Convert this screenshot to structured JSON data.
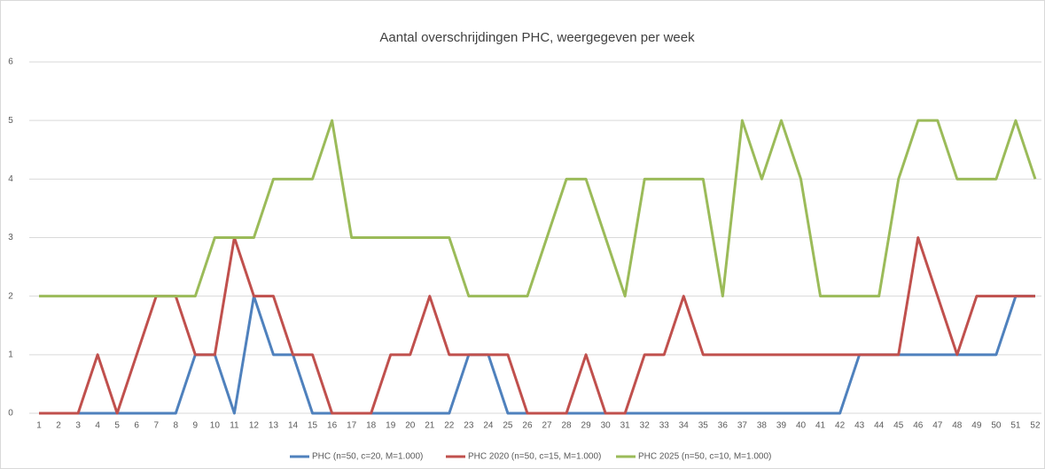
{
  "chart_data": {
    "type": "line",
    "title": "Aantal overschrijdingen PHC, weergegeven per week",
    "categories": [
      1,
      2,
      3,
      4,
      5,
      6,
      7,
      8,
      9,
      10,
      11,
      12,
      13,
      14,
      15,
      16,
      17,
      18,
      19,
      20,
      21,
      22,
      23,
      24,
      25,
      26,
      27,
      28,
      29,
      30,
      31,
      32,
      33,
      34,
      35,
      36,
      37,
      38,
      39,
      40,
      41,
      42,
      43,
      44,
      45,
      46,
      47,
      48,
      49,
      50,
      51,
      52
    ],
    "series": [
      {
        "name": "PHC (n=50, c=20, M=1.000)",
        "color": "#4f81bd",
        "values": [
          0,
          0,
          0,
          0,
          0,
          0,
          0,
          0,
          1,
          1,
          0,
          2,
          1,
          1,
          0,
          0,
          0,
          0,
          0,
          0,
          0,
          0,
          1,
          1,
          0,
          0,
          0,
          0,
          0,
          0,
          0,
          0,
          0,
          0,
          0,
          0,
          0,
          0,
          0,
          0,
          0,
          0,
          1,
          1,
          1,
          1,
          1,
          1,
          1,
          1,
          2,
          2
        ]
      },
      {
        "name": "PHC 2020 (n=50, c=15, M=1.000)",
        "color": "#c0504d",
        "values": [
          0,
          0,
          0,
          1,
          0,
          1,
          2,
          2,
          1,
          1,
          3,
          2,
          2,
          1,
          1,
          0,
          0,
          0,
          1,
          1,
          2,
          1,
          1,
          1,
          1,
          0,
          0,
          0,
          1,
          0,
          0,
          1,
          1,
          2,
          1,
          1,
          1,
          1,
          1,
          1,
          1,
          1,
          1,
          1,
          1,
          3,
          2,
          1,
          2,
          2,
          2,
          2
        ]
      },
      {
        "name": "PHC 2025 (n=50, c=10, M=1.000)",
        "color": "#9bbb59",
        "values": [
          2,
          2,
          2,
          2,
          2,
          2,
          2,
          2,
          2,
          3,
          3,
          3,
          4,
          4,
          4,
          5,
          3,
          3,
          3,
          3,
          3,
          3,
          2,
          2,
          2,
          2,
          3,
          4,
          4,
          3,
          2,
          4,
          4,
          4,
          4,
          2,
          5,
          4,
          5,
          4,
          2,
          2,
          2,
          2,
          4,
          5,
          5,
          4,
          4,
          4,
          5,
          4
        ]
      }
    ],
    "ylim": [
      0,
      6
    ],
    "yticks": [
      0,
      1,
      2,
      3,
      4,
      5,
      6
    ],
    "grid": true,
    "legend": "bottom"
  }
}
